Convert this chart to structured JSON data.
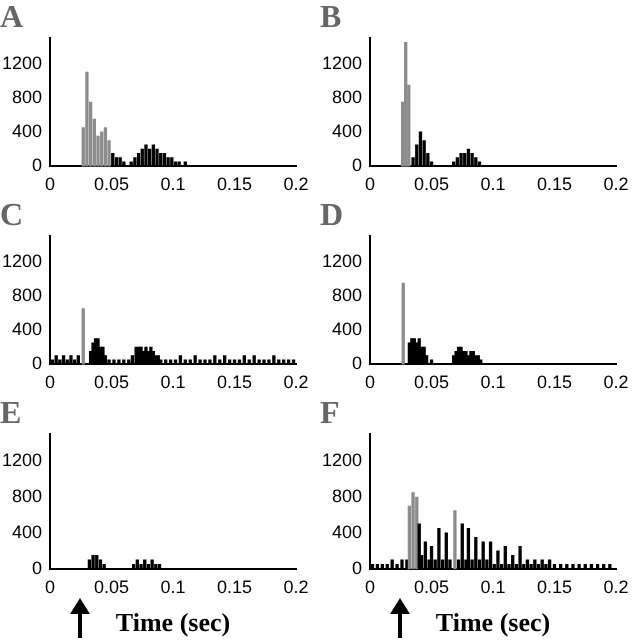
{
  "chart_data": [
    {
      "type": "bar",
      "title": "A",
      "xlim": [
        0,
        0.2
      ],
      "xticks": [
        0,
        0.05,
        0.1,
        0.15,
        0.2
      ],
      "ylim": [
        0,
        1500
      ],
      "yticks": [
        0,
        400,
        800,
        1200
      ],
      "series": [
        {
          "x": [
            0.027,
            0.03,
            0.033,
            0.036,
            0.039,
            0.042,
            0.045,
            0.048,
            0.051,
            0.054,
            0.057,
            0.06,
            0.066,
            0.069,
            0.072,
            0.075,
            0.078,
            0.081,
            0.084,
            0.087,
            0.09,
            0.093,
            0.096,
            0.099,
            0.102,
            0.105,
            0.11
          ],
          "values": [
            450,
            1100,
            750,
            550,
            350,
            400,
            450,
            300,
            150,
            100,
            100,
            50,
            50,
            100,
            150,
            200,
            250,
            200,
            250,
            200,
            150,
            150,
            100,
            100,
            50,
            50,
            50
          ],
          "colors": [
            "#8c8c8c",
            "#8c8c8c",
            "#8c8c8c",
            "#8c8c8c",
            "#8c8c8c",
            "#8c8c8c",
            "#8c8c8c",
            "#8c8c8c",
            "#000000",
            "#000000",
            "#000000",
            "#000000",
            "#000000",
            "#000000",
            "#000000",
            "#000000",
            "#000000",
            "#000000",
            "#000000",
            "#000000",
            "#000000",
            "#000000",
            "#000000",
            "#000000",
            "#000000",
            "#000000",
            "#000000"
          ]
        }
      ]
    },
    {
      "type": "bar",
      "title": "B",
      "xlim": [
        0,
        0.2
      ],
      "xticks": [
        0,
        0.05,
        0.1,
        0.15,
        0.2
      ],
      "ylim": [
        0,
        1500
      ],
      "yticks": [
        0,
        400,
        800,
        1200
      ],
      "series": [
        {
          "x": [
            0.0265,
            0.029,
            0.0315,
            0.035,
            0.038,
            0.041,
            0.044,
            0.047,
            0.05,
            0.068,
            0.071,
            0.074,
            0.077,
            0.08,
            0.083,
            0.086,
            0.089
          ],
          "values": [
            750,
            1450,
            950,
            100,
            250,
            400,
            300,
            150,
            50,
            50,
            100,
            150,
            150,
            200,
            150,
            100,
            50
          ],
          "colors": [
            "#8c8c8c",
            "#8c8c8c",
            "#8c8c8c",
            "#000000",
            "#000000",
            "#000000",
            "#000000",
            "#000000",
            "#000000",
            "#000000",
            "#000000",
            "#000000",
            "#000000",
            "#000000",
            "#000000",
            "#000000",
            "#000000"
          ]
        }
      ]
    },
    {
      "type": "bar",
      "title": "C",
      "xlim": [
        0,
        0.2
      ],
      "xticks": [
        0,
        0.05,
        0.1,
        0.15,
        0.2
      ],
      "ylim": [
        0,
        1500
      ],
      "yticks": [
        0,
        400,
        800,
        1200
      ],
      "series": [
        {
          "x": [
            0.002,
            0.005,
            0.008,
            0.011,
            0.014,
            0.017,
            0.02,
            0.023,
            0.027,
            0.033,
            0.035,
            0.037,
            0.039,
            0.041,
            0.043,
            0.045,
            0.048,
            0.052,
            0.056,
            0.06,
            0.064,
            0.067,
            0.07,
            0.072,
            0.074,
            0.076,
            0.078,
            0.08,
            0.082,
            0.084,
            0.086,
            0.088,
            0.09,
            0.094,
            0.098,
            0.102,
            0.106,
            0.11,
            0.114,
            0.118,
            0.122,
            0.126,
            0.13,
            0.134,
            0.138,
            0.142,
            0.146,
            0.15,
            0.154,
            0.158,
            0.162,
            0.166,
            0.17,
            0.174,
            0.178,
            0.182,
            0.186,
            0.19,
            0.194,
            0.198
          ],
          "values": [
            50,
            100,
            50,
            100,
            50,
            100,
            50,
            100,
            650,
            150,
            250,
            300,
            300,
            200,
            200,
            100,
            50,
            50,
            50,
            50,
            50,
            100,
            200,
            200,
            200,
            150,
            200,
            150,
            200,
            150,
            100,
            100,
            50,
            50,
            50,
            50,
            100,
            50,
            50,
            100,
            50,
            50,
            50,
            100,
            50,
            100,
            50,
            50,
            50,
            100,
            50,
            100,
            50,
            50,
            50,
            100,
            50,
            50,
            50,
            50
          ],
          "colors": [
            "#000000",
            "#000000",
            "#000000",
            "#000000",
            "#000000",
            "#000000",
            "#000000",
            "#000000",
            "#8c8c8c",
            "#000000",
            "#000000",
            "#000000",
            "#000000",
            "#000000",
            "#000000",
            "#000000",
            "#000000",
            "#000000",
            "#000000",
            "#000000",
            "#000000",
            "#000000",
            "#000000",
            "#000000",
            "#000000",
            "#000000",
            "#000000",
            "#000000",
            "#000000",
            "#000000",
            "#000000",
            "#000000",
            "#000000",
            "#000000",
            "#000000",
            "#000000",
            "#000000",
            "#000000",
            "#000000",
            "#000000",
            "#000000",
            "#000000",
            "#000000",
            "#000000",
            "#000000",
            "#000000",
            "#000000",
            "#000000",
            "#000000",
            "#000000",
            "#000000",
            "#000000",
            "#000000",
            "#000000",
            "#000000",
            "#000000",
            "#000000",
            "#000000",
            "#000000",
            "#000000"
          ]
        }
      ]
    },
    {
      "type": "bar",
      "title": "D",
      "xlim": [
        0,
        0.2
      ],
      "xticks": [
        0,
        0.05,
        0.1,
        0.15,
        0.2
      ],
      "ylim": [
        0,
        1500
      ],
      "yticks": [
        0,
        400,
        800,
        1200
      ],
      "series": [
        {
          "x": [
            0.027,
            0.032,
            0.034,
            0.036,
            0.038,
            0.04,
            0.042,
            0.044,
            0.046,
            0.05,
            0.068,
            0.07,
            0.072,
            0.074,
            0.076,
            0.078,
            0.08,
            0.082,
            0.084,
            0.086,
            0.088,
            0.09
          ],
          "values": [
            950,
            250,
            300,
            300,
            250,
            300,
            200,
            200,
            100,
            50,
            100,
            150,
            200,
            200,
            150,
            150,
            100,
            150,
            150,
            100,
            100,
            50
          ],
          "colors": [
            "#8c8c8c",
            "#000000",
            "#000000",
            "#000000",
            "#000000",
            "#000000",
            "#000000",
            "#000000",
            "#000000",
            "#000000",
            "#000000",
            "#000000",
            "#000000",
            "#000000",
            "#000000",
            "#000000",
            "#000000",
            "#000000",
            "#000000",
            "#000000",
            "#000000",
            "#000000"
          ]
        }
      ]
    },
    {
      "type": "bar",
      "title": "E",
      "xlabel": "Time (sec)",
      "xlim": [
        0,
        0.2
      ],
      "xticks": [
        0,
        0.05,
        0.1,
        0.15,
        0.2
      ],
      "ylim": [
        0,
        1500
      ],
      "yticks": [
        0,
        400,
        800,
        1200
      ],
      "series": [
        {
          "color": "#000000",
          "x": [
            0.032,
            0.035,
            0.038,
            0.041,
            0.044,
            0.068,
            0.071,
            0.074,
            0.077,
            0.08,
            0.083,
            0.086,
            0.089
          ],
          "values": [
            100,
            150,
            150,
            100,
            50,
            50,
            100,
            50,
            100,
            50,
            100,
            50,
            50
          ]
        }
      ]
    },
    {
      "type": "bar",
      "title": "F",
      "xlabel": "Time (sec)",
      "xlim": [
        0,
        0.2
      ],
      "xticks": [
        0,
        0.05,
        0.1,
        0.15,
        0.2
      ],
      "ylim": [
        0,
        1500
      ],
      "yticks": [
        0,
        400,
        800,
        1200
      ],
      "series": [
        {
          "x": [
            0.002,
            0.006,
            0.01,
            0.014,
            0.018,
            0.022,
            0.026,
            0.03,
            0.032,
            0.035,
            0.038,
            0.04,
            0.042,
            0.045,
            0.048,
            0.05,
            0.053,
            0.056,
            0.059,
            0.062,
            0.065,
            0.069,
            0.072,
            0.075,
            0.078,
            0.08,
            0.083,
            0.086,
            0.089,
            0.092,
            0.095,
            0.098,
            0.101,
            0.104,
            0.107,
            0.11,
            0.113,
            0.116,
            0.119,
            0.122,
            0.125,
            0.128,
            0.131,
            0.134,
            0.137,
            0.14,
            0.143,
            0.146,
            0.15,
            0.155,
            0.16,
            0.165,
            0.17,
            0.175,
            0.18,
            0.185,
            0.19,
            0.195
          ],
          "values": [
            50,
            50,
            50,
            50,
            100,
            50,
            100,
            100,
            700,
            850,
            800,
            500,
            150,
            300,
            100,
            250,
            100,
            450,
            100,
            400,
            100,
            650,
            100,
            500,
            100,
            450,
            100,
            350,
            100,
            300,
            100,
            300,
            50,
            200,
            50,
            250,
            50,
            150,
            50,
            250,
            50,
            100,
            50,
            100,
            50,
            100,
            50,
            100,
            50,
            50,
            50,
            50,
            50,
            50,
            50,
            50,
            50,
            50
          ],
          "colors": [
            "#000000",
            "#000000",
            "#000000",
            "#000000",
            "#000000",
            "#000000",
            "#000000",
            "#000000",
            "#8c8c8c",
            "#8c8c8c",
            "#8c8c8c",
            "#000000",
            "#000000",
            "#000000",
            "#000000",
            "#000000",
            "#000000",
            "#000000",
            "#000000",
            "#000000",
            "#000000",
            "#8c8c8c",
            "#000000",
            "#000000",
            "#000000",
            "#000000",
            "#000000",
            "#000000",
            "#000000",
            "#000000",
            "#000000",
            "#000000",
            "#000000",
            "#000000",
            "#000000",
            "#000000",
            "#000000",
            "#000000",
            "#000000",
            "#000000",
            "#000000",
            "#000000",
            "#000000",
            "#000000",
            "#000000",
            "#000000",
            "#000000",
            "#000000",
            "#000000",
            "#000000",
            "#000000",
            "#000000",
            "#000000",
            "#000000",
            "#000000",
            "#000000",
            "#000000",
            "#000000"
          ]
        }
      ]
    }
  ]
}
